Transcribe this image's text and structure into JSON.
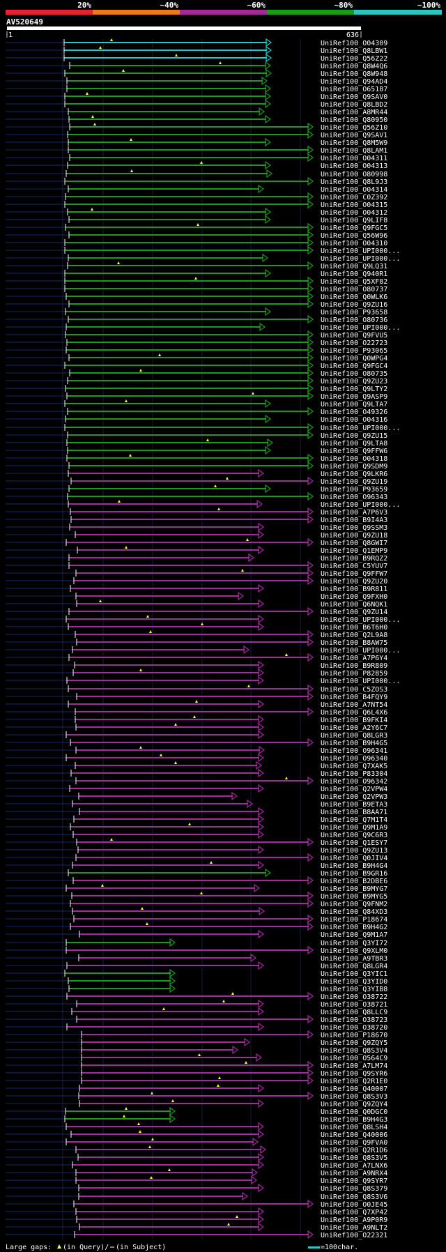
{
  "header": {
    "scale_labels": [
      "20%",
      "~40%",
      "~60%",
      "~80%",
      "~100%"
    ],
    "scale_colors": [
      "#e8232f",
      "#e87b1e",
      "#a02c9c",
      "#1c9a1c",
      "#2ac6c6"
    ],
    "query_id": "AV520649",
    "ruler_start": "1",
    "ruler_end": "636"
  },
  "colors": {
    "cyan": "#2ac6c6",
    "green": "#1c9a1c",
    "magenta": "#a02c9c",
    "insert_mark": "#ffff33",
    "guide": "#1a2a6a"
  },
  "footer": {
    "gaps_label": "Large gaps:",
    "in_query": "(in Query)/",
    "in_subject": "(in Subject)",
    "scale_note": "=100char."
  },
  "hits": [
    {
      "id": "UniRef100_O04309",
      "c": "c"
    },
    {
      "id": "UniRef100_Q8LBW1",
      "c": "c"
    },
    {
      "id": "UniRef100_Q56Z22",
      "c": "c"
    },
    {
      "id": "UniRef100_Q8W4Q6",
      "c": "g"
    },
    {
      "id": "UniRef100_Q8W948",
      "c": "g"
    },
    {
      "id": "UniRef100_Q94AD4",
      "c": "g"
    },
    {
      "id": "UniRef100_O65187",
      "c": "g"
    },
    {
      "id": "UniRef100_Q9SAV0",
      "c": "g"
    },
    {
      "id": "UniRef100_Q8LBD2",
      "c": "g"
    },
    {
      "id": "UniRef100_A8MR44",
      "c": "g"
    },
    {
      "id": "UniRef100_Q80950",
      "c": "g"
    },
    {
      "id": "UniRef100_Q56Z10",
      "c": "g"
    },
    {
      "id": "UniRef100_Q9SAV1",
      "c": "g"
    },
    {
      "id": "UniRef100_Q8M5W9",
      "c": "g"
    },
    {
      "id": "UniRef100_Q8LAM1",
      "c": "g"
    },
    {
      "id": "UniRef100_O04311",
      "c": "g"
    },
    {
      "id": "UniRef100_O04313",
      "c": "g"
    },
    {
      "id": "UniRef100_O80998",
      "c": "g"
    },
    {
      "id": "UniRef100_Q8L9J3",
      "c": "g"
    },
    {
      "id": "UniRef100_O04314",
      "c": "g"
    },
    {
      "id": "UniRef100_C0Z392",
      "c": "g"
    },
    {
      "id": "UniRef100_O04315",
      "c": "g"
    },
    {
      "id": "UniRef100_O04312",
      "c": "g"
    },
    {
      "id": "UniRef100_Q9LIF8",
      "c": "g"
    },
    {
      "id": "UniRef100_Q9FGC5",
      "c": "g"
    },
    {
      "id": "UniRef100_Q56W96",
      "c": "g"
    },
    {
      "id": "UniRef100_O04310",
      "c": "g"
    },
    {
      "id": "UniRef100_UPI000...",
      "c": "g"
    },
    {
      "id": "UniRef100_UPI000...",
      "c": "g"
    },
    {
      "id": "UniRef100_Q9LQ31",
      "c": "g"
    },
    {
      "id": "UniRef100_Q940R1",
      "c": "g"
    },
    {
      "id": "UniRef100_Q5XF82",
      "c": "g"
    },
    {
      "id": "UniRef100_O80737",
      "c": "g"
    },
    {
      "id": "UniRef100_Q0WLK6",
      "c": "g"
    },
    {
      "id": "UniRef100_Q9ZU16",
      "c": "g"
    },
    {
      "id": "UniRef100_P93658",
      "c": "g"
    },
    {
      "id": "UniRef100_O80736",
      "c": "g"
    },
    {
      "id": "UniRef100_UPI000...",
      "c": "g"
    },
    {
      "id": "UniRef100_Q9FVU5",
      "c": "g"
    },
    {
      "id": "UniRef100_O22723",
      "c": "g"
    },
    {
      "id": "UniRef100_P93065",
      "c": "g"
    },
    {
      "id": "UniRef100_Q0WPG4",
      "c": "g"
    },
    {
      "id": "UniRef100_Q9FGC4",
      "c": "g"
    },
    {
      "id": "UniRef100_O80735",
      "c": "g"
    },
    {
      "id": "UniRef100_Q9ZU23",
      "c": "g"
    },
    {
      "id": "UniRef100_Q9LTY2",
      "c": "g"
    },
    {
      "id": "UniRef100_Q9ASP9",
      "c": "g"
    },
    {
      "id": "UniRef100_Q9LTA7",
      "c": "g"
    },
    {
      "id": "UniRef100_O49326",
      "c": "g"
    },
    {
      "id": "UniRef100_O04316",
      "c": "g"
    },
    {
      "id": "UniRef100_UPI000...",
      "c": "g"
    },
    {
      "id": "UniRef100_Q9ZU15",
      "c": "g"
    },
    {
      "id": "UniRef100_Q9LTA8",
      "c": "g"
    },
    {
      "id": "UniRef100_Q9FFW6",
      "c": "g"
    },
    {
      "id": "UniRef100_O04318",
      "c": "g"
    },
    {
      "id": "UniRef100_Q9SDM9",
      "c": "g"
    },
    {
      "id": "UniRef100_Q9LKR6",
      "c": "m"
    },
    {
      "id": "UniRef100_Q9ZU19",
      "c": "m"
    },
    {
      "id": "UniRef100_P93659",
      "c": "g"
    },
    {
      "id": "UniRef100_O96343",
      "c": "g"
    },
    {
      "id": "UniRef100_UPI000...",
      "c": "m"
    },
    {
      "id": "UniRef100_A7P6V3",
      "c": "m"
    },
    {
      "id": "UniRef100_B9I4A3",
      "c": "m"
    },
    {
      "id": "UniRef100_Q9SSM3",
      "c": "m"
    },
    {
      "id": "UniRef100_Q9ZU18",
      "c": "m"
    },
    {
      "id": "UniRef100_Q8GWI7",
      "c": "m"
    },
    {
      "id": "UniRef100_Q1EMP9",
      "c": "m"
    },
    {
      "id": "UniRef100_B9RQZ2",
      "c": "m"
    },
    {
      "id": "UniRef100_C5YUV7",
      "c": "m"
    },
    {
      "id": "UniRef100_Q9FFW7",
      "c": "m"
    },
    {
      "id": "UniRef100_Q9ZU20",
      "c": "m"
    },
    {
      "id": "UniRef100_B9R811",
      "c": "m"
    },
    {
      "id": "UniRef100_Q9FXH0",
      "c": "m"
    },
    {
      "id": "UniRef100_Q6NQK1",
      "c": "m"
    },
    {
      "id": "UniRef100_Q9ZU14",
      "c": "m"
    },
    {
      "id": "UniRef100_UPI000...",
      "c": "m"
    },
    {
      "id": "UniRef100_B6T6H0",
      "c": "m"
    },
    {
      "id": "UniRef100_Q2L9A8",
      "c": "m"
    },
    {
      "id": "UniRef100_B8AW75",
      "c": "m"
    },
    {
      "id": "UniRef100_UPI000...",
      "c": "m"
    },
    {
      "id": "UniRef100_A7P6Y4",
      "c": "m"
    },
    {
      "id": "UniRef100_B9R809",
      "c": "m"
    },
    {
      "id": "UniRef100_P82859",
      "c": "m"
    },
    {
      "id": "UniRef100_UPI000...",
      "c": "m"
    },
    {
      "id": "UniRef100_C5ZOS3",
      "c": "m"
    },
    {
      "id": "UniRef100_B4FQY9",
      "c": "m"
    },
    {
      "id": "UniRef100_A7NT54",
      "c": "m"
    },
    {
      "id": "UniRef100_Q6L4X6",
      "c": "m"
    },
    {
      "id": "UniRef100_B9FKI4",
      "c": "m"
    },
    {
      "id": "UniRef100_A2Y6C7",
      "c": "m"
    },
    {
      "id": "UniRef100_Q8LGR3",
      "c": "m"
    },
    {
      "id": "UniRef100_B9H4G5",
      "c": "m"
    },
    {
      "id": "UniRef100_O96341",
      "c": "m"
    },
    {
      "id": "UniRef100_O96340",
      "c": "m"
    },
    {
      "id": "UniRef100_Q7XAK5",
      "c": "m"
    },
    {
      "id": "UniRef100_P83304",
      "c": "m"
    },
    {
      "id": "UniRef100_O96342",
      "c": "m"
    },
    {
      "id": "UniRef100_Q2VPW4",
      "c": "m"
    },
    {
      "id": "UniRef100_Q2VPW3",
      "c": "m"
    },
    {
      "id": "UniRef100_B9ETA3",
      "c": "m"
    },
    {
      "id": "UniRef100_B8AA71",
      "c": "m"
    },
    {
      "id": "UniRef100_Q7M1T4",
      "c": "m"
    },
    {
      "id": "UniRef100_Q9M1A9",
      "c": "m"
    },
    {
      "id": "UniRef100_Q9C6R3",
      "c": "m"
    },
    {
      "id": "UniRef100_Q1ESY7",
      "c": "m"
    },
    {
      "id": "UniRef100_Q9ZU13",
      "c": "m"
    },
    {
      "id": "UniRef100_Q0JIV4",
      "c": "m"
    },
    {
      "id": "UniRef100_B9H4G4",
      "c": "m"
    },
    {
      "id": "UniRef100_B9GR16",
      "c": "g"
    },
    {
      "id": "UniRef100_B2DBE6",
      "c": "m"
    },
    {
      "id": "UniRef100_B9MYG7",
      "c": "m"
    },
    {
      "id": "UniRef100_B9MYG5",
      "c": "m"
    },
    {
      "id": "UniRef100_Q9FNM2",
      "c": "m"
    },
    {
      "id": "UniRef100_Q84XD3",
      "c": "m"
    },
    {
      "id": "UniRef100_P18674",
      "c": "m"
    },
    {
      "id": "UniRef100_B9H4G2",
      "c": "m"
    },
    {
      "id": "UniRef100_Q9M1A7",
      "c": "m"
    },
    {
      "id": "UniRef100_Q3YI72",
      "c": "g"
    },
    {
      "id": "UniRef100_Q9XLM0",
      "c": "m"
    },
    {
      "id": "UniRef100_A9TBR3",
      "c": "m"
    },
    {
      "id": "UniRef100_Q8LGR4",
      "c": "m"
    },
    {
      "id": "UniRef100_Q3YIC1",
      "c": "g"
    },
    {
      "id": "UniRef100_Q3YID0",
      "c": "g"
    },
    {
      "id": "UniRef100_Q3YIB8",
      "c": "g"
    },
    {
      "id": "UniRef100_O38722",
      "c": "m"
    },
    {
      "id": "UniRef100_O38721",
      "c": "m"
    },
    {
      "id": "UniRef100_Q8LLC9",
      "c": "m"
    },
    {
      "id": "UniRef100_O38723",
      "c": "m"
    },
    {
      "id": "UniRef100_O38720",
      "c": "m"
    },
    {
      "id": "UniRef100_P18670",
      "c": "m"
    },
    {
      "id": "UniRef100_Q9ZQY5",
      "c": "m"
    },
    {
      "id": "UniRef100_Q8S3V4",
      "c": "m"
    },
    {
      "id": "UniRef100_O564C9",
      "c": "m"
    },
    {
      "id": "UniRef100_A7LM74",
      "c": "m"
    },
    {
      "id": "UniRef100_Q9SYR6",
      "c": "m"
    },
    {
      "id": "UniRef100_Q2R1E0",
      "c": "m"
    },
    {
      "id": "UniRef100_Q40007",
      "c": "m"
    },
    {
      "id": "UniRef100_Q8S3V3",
      "c": "m"
    },
    {
      "id": "UniRef100_Q9ZQY4",
      "c": "m"
    },
    {
      "id": "UniRef100_Q0DGC0",
      "c": "g"
    },
    {
      "id": "UniRef100_B9H4G3",
      "c": "g"
    },
    {
      "id": "UniRef100_Q8LSH4",
      "c": "m"
    },
    {
      "id": "UniRef100_Q40006",
      "c": "m"
    },
    {
      "id": "UniRef100_Q9FVA0",
      "c": "m"
    },
    {
      "id": "UniRef100_Q2R1D6",
      "c": "m"
    },
    {
      "id": "UniRef100_Q8S3V5",
      "c": "m"
    },
    {
      "id": "UniRef100_A7LNX6",
      "c": "m"
    },
    {
      "id": "UniRef100_A9NRX4",
      "c": "m"
    },
    {
      "id": "UniRef100_Q9SYR7",
      "c": "m"
    },
    {
      "id": "UniRef100_Q8S379",
      "c": "m"
    },
    {
      "id": "UniRef100_Q8S3V6",
      "c": "m"
    },
    {
      "id": "UniRef100_O0JE45",
      "c": "m"
    },
    {
      "id": "UniRef100_Q7XP42",
      "c": "m"
    },
    {
      "id": "UniRef100_A9P0R9",
      "c": "m"
    },
    {
      "id": "UniRef100_A9NLT2",
      "c": "m"
    },
    {
      "id": "UniRef100_O22321",
      "c": "m"
    }
  ]
}
